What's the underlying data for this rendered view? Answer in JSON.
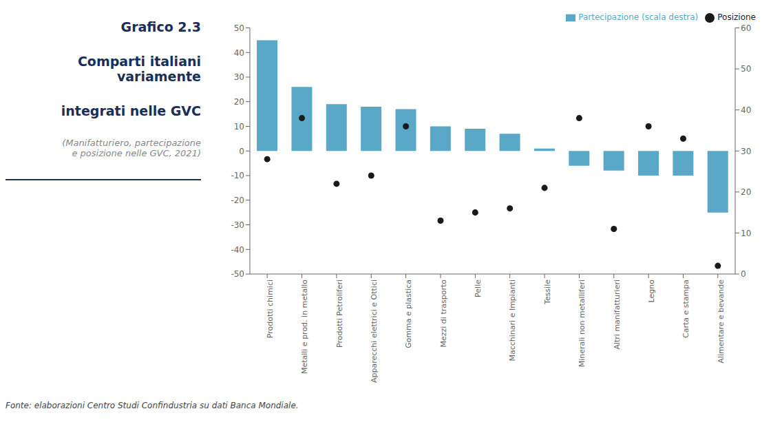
{
  "chart_data": {
    "type": "bar",
    "title": "Grafico 2.3\nComparti italiani variamente\nintegrati nelle GVC",
    "subtitle": "(Manifatturiero, partecipazione\ne posizione nelle GVC, 2021)",
    "annotations": [
      "Fonte: elaborazioni Centro Studi Confindustria su dati Banca Mondiale."
    ],
    "categories": [
      "Prodotti chimici",
      "Metalli e prod. in metallo",
      "Prodotti Petroliferi",
      "Apparecchi elettrici e Ottici",
      "Gomma e plastica",
      "Mezzi di trasporto",
      "Pelle",
      "Macchinari e Impianti",
      "Tessile",
      "Minerali non metalliferi",
      "Altri manifatturieri",
      "Legno",
      "Carta e stampa",
      "Alimentare e bevande"
    ],
    "series": [
      {
        "name": "Partecipazione (scala destra)",
        "type": "bar",
        "color": "#5aa8c8",
        "values": [
          45,
          26,
          19,
          18,
          17,
          10,
          9,
          7,
          1,
          -6,
          -8,
          -10,
          -10,
          -25
        ]
      },
      {
        "name": "Posizione",
        "type": "scatter",
        "marker": "circle",
        "color": "#1a1a1a",
        "axis": "y2",
        "values": [
          28,
          38,
          22,
          24,
          36,
          13,
          15,
          16,
          21,
          38,
          11,
          36,
          33,
          2
        ]
      }
    ],
    "ylim": [
      -50,
      50
    ],
    "yticks": [
      -50,
      -40,
      -30,
      -20,
      -10,
      0,
      10,
      20,
      30,
      40,
      50
    ],
    "y2lim": [
      0,
      60
    ],
    "y2ticks": [
      0,
      10,
      20,
      30,
      40,
      50,
      60
    ],
    "grid": false,
    "legend": "upper right"
  }
}
